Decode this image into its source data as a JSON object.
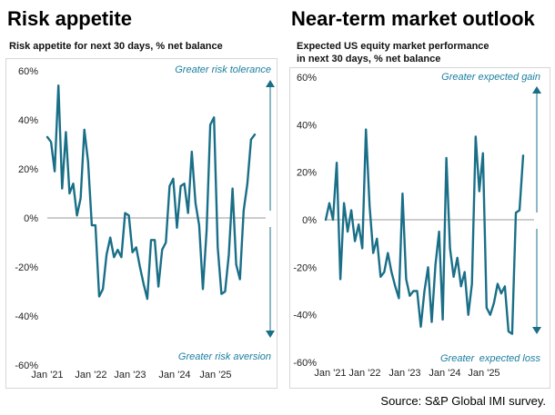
{
  "colors": {
    "line": "#1a6f88",
    "arrow": "#1a6f88",
    "anno": "#1b7ea0",
    "zero": "#999999"
  },
  "source": "Source: S&P Global IMI survey.",
  "chart_data": [
    {
      "type": "line",
      "title": "Risk appetite",
      "subtitle": [
        "Risk appetite for next 30 days, % net balance"
      ],
      "yticks": [
        "60%",
        "40%",
        "20%",
        "0%",
        "-20%",
        "-40%",
        "-60%"
      ],
      "xticks": [
        "Jan '21",
        "Jan '22",
        "Jan '23",
        "Jan '24",
        "Jan '25"
      ],
      "xtick_pos": [
        0,
        12,
        24,
        36,
        48
      ],
      "ylim": [
        -60,
        60
      ],
      "xlim": [
        0,
        58
      ],
      "annotation_top": "Greater risk tolerance",
      "annotation_bottom": "Greater risk aversion",
      "series": [
        {
          "values": [
            33,
            31,
            19,
            54,
            12,
            35,
            10,
            14,
            1,
            8,
            36,
            23,
            -3,
            -3,
            -32,
            -29,
            -15,
            -8,
            -16,
            -13,
            -16,
            2,
            1,
            -14,
            -12,
            -20,
            -27,
            -33,
            -9,
            -9,
            -28,
            -13,
            -10,
            13,
            16,
            -4,
            13,
            14,
            2,
            27,
            6,
            -3,
            -29,
            -5,
            38,
            41,
            -12,
            -31,
            -30,
            -15,
            12,
            -19,
            -25,
            3,
            14,
            32,
            34
          ]
        }
      ]
    },
    {
      "type": "line",
      "title": "Near-term market outlook",
      "subtitle": [
        "Expected US equity market performance",
        "in next 30 days, % net balance"
      ],
      "yticks": [
        "60%",
        "40%",
        "20%",
        "0%",
        "-20%",
        "-40%",
        "-60%"
      ],
      "xticks": [
        "Jan '21",
        "Jan '22",
        "Jan '23",
        "Jan '24",
        "Jan '25"
      ],
      "xtick_pos": [
        0,
        12,
        24,
        36,
        48
      ],
      "ylim": [
        -60,
        60
      ],
      "xlim": [
        0,
        58
      ],
      "annotation_top": "Greater expected gain",
      "annotation_bottom_parts": [
        "Greater",
        "expected loss"
      ],
      "series": [
        {
          "values": [
            0,
            7,
            0,
            24,
            -25,
            7,
            -5,
            4,
            -9,
            -2,
            -12,
            38,
            6,
            -14,
            -8,
            -24,
            -22,
            -14,
            -22,
            -28,
            -33,
            11,
            -25,
            -32,
            -30,
            -30,
            -45,
            -30,
            -20,
            -43,
            -19,
            -5,
            -42,
            26,
            -12,
            -24,
            -16,
            -28,
            -22,
            -40,
            -27,
            35,
            12,
            28,
            -37,
            -40,
            -35,
            -27,
            -31,
            -28,
            -47,
            -48,
            3,
            4,
            27
          ]
        }
      ]
    }
  ]
}
